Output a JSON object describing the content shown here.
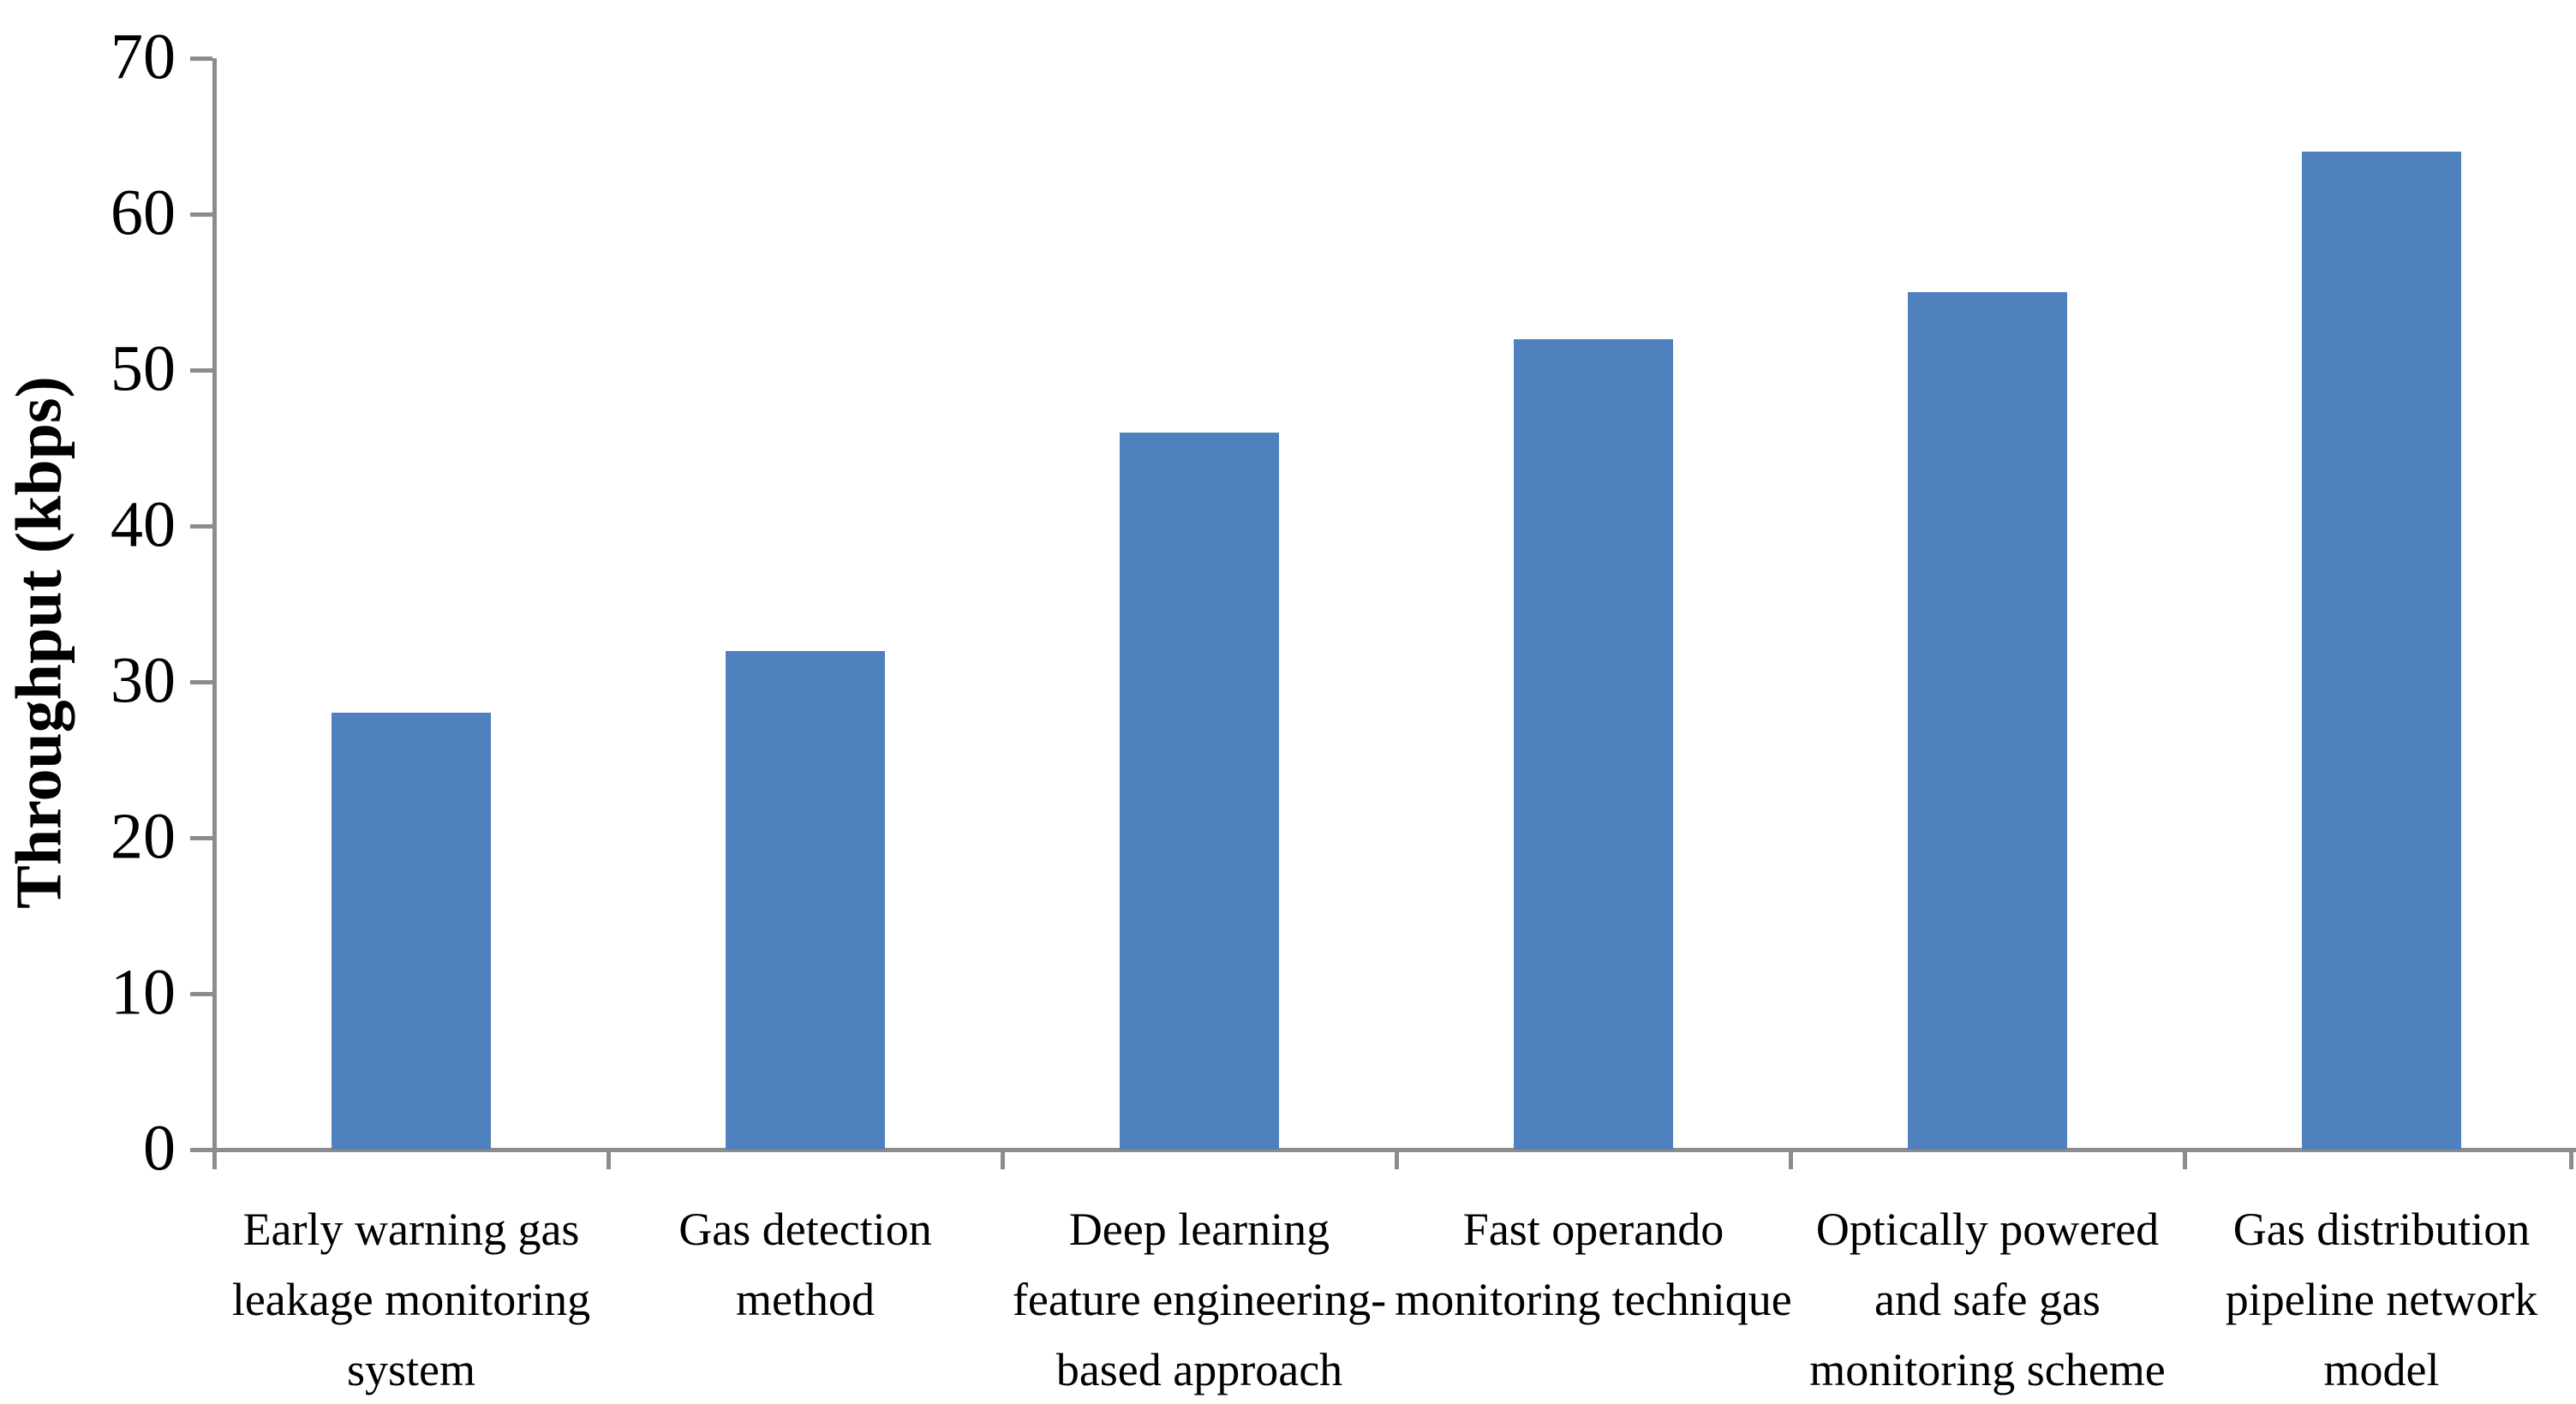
{
  "chart_data": {
    "type": "bar",
    "ylabel": "Throughput (kbps)",
    "ylim": [
      0,
      70
    ],
    "yticks": [
      0,
      10,
      20,
      30,
      40,
      50,
      60,
      70
    ],
    "grid": false,
    "legend_position": "none",
    "bar_color": "#4E81BD",
    "axis_color": "#8C8C8C",
    "text_color": "#000000",
    "categories": [
      "Early warning gas\nleakage monitoring\nsystem",
      "Gas detection\nmethod",
      "Deep learning\nfeature engineering-\nbased approach",
      "Fast operando\nmonitoring technique",
      "Optically powered\nand safe gas\nmonitoring scheme",
      "Gas distribution\npipeline network\nmodel"
    ],
    "values": [
      28,
      32,
      46,
      52,
      55,
      64
    ]
  }
}
